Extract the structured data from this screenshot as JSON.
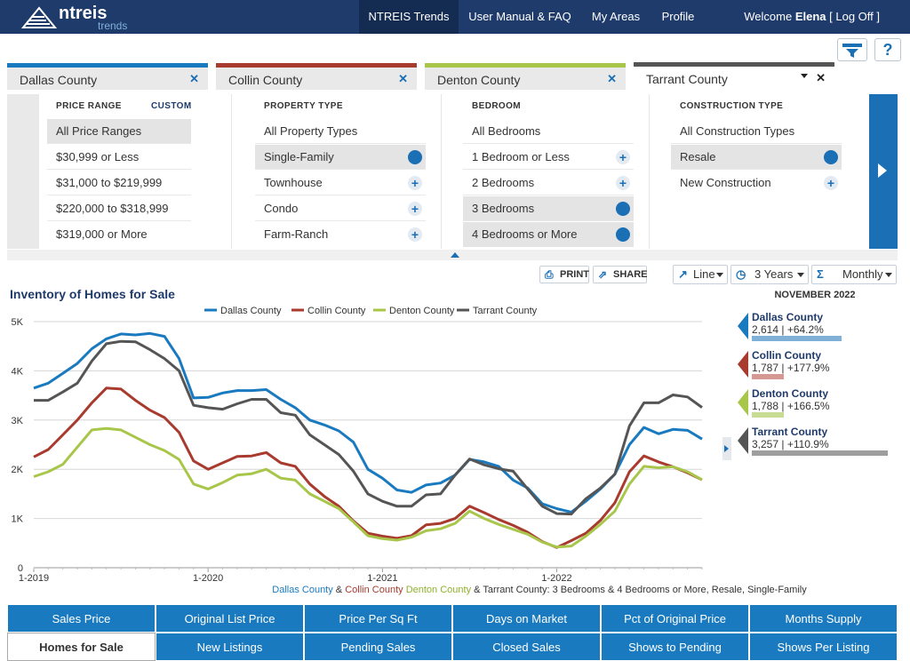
{
  "header": {
    "logo_text": "ntreis",
    "logo_sub": "trends",
    "nav": [
      "NTREIS Trends",
      "User Manual & FAQ",
      "My Areas",
      "Profile"
    ],
    "welcome_prefix": "Welcome",
    "user": "Elena",
    "logout": "[ Log Off ]"
  },
  "toolbar_icons": {
    "filter": "filter-icon",
    "help": "?"
  },
  "area_tabs": [
    {
      "label": "Dallas County",
      "color": "#1a7abf"
    },
    {
      "label": "Collin County",
      "color": "#a83a2e"
    },
    {
      "label": "Denton County",
      "color": "#a8c64a"
    },
    {
      "label": "Tarrant County",
      "color": "#555555"
    }
  ],
  "filters": {
    "price": {
      "header": "PRICE RANGE",
      "custom": "CUSTOM",
      "items": [
        "All Price Ranges",
        "$30,999 or Less",
        "$31,000 to $219,999",
        "$220,000 to $318,999",
        "$319,000 or More"
      ]
    },
    "property": {
      "header": "PROPERTY TYPE",
      "items": [
        "All Property Types",
        "Single-Family",
        "Townhouse",
        "Condo",
        "Farm-Ranch"
      ]
    },
    "bedroom": {
      "header": "BEDROOM",
      "items": [
        "All Bedrooms",
        "1 Bedroom or Less",
        "2 Bedrooms",
        "3 Bedrooms",
        "4 Bedrooms or More"
      ]
    },
    "construction": {
      "header": "CONSTRUCTION TYPE",
      "items": [
        "All Construction Types",
        "Resale",
        "New Construction"
      ]
    }
  },
  "controls": {
    "print": "PRINT",
    "share": "SHARE",
    "chart_type": "Line",
    "period": "3 Years",
    "interval": "Monthly"
  },
  "chart_data": {
    "type": "line",
    "title": "Inventory of Homes for Sale",
    "x": [
      "2019-01",
      "2019-02",
      "2019-03",
      "2019-04",
      "2019-05",
      "2019-06",
      "2019-07",
      "2019-08",
      "2019-09",
      "2019-10",
      "2019-11",
      "2019-12",
      "2020-01",
      "2020-02",
      "2020-03",
      "2020-04",
      "2020-05",
      "2020-06",
      "2020-07",
      "2020-08",
      "2020-09",
      "2020-10",
      "2020-11",
      "2020-12",
      "2021-01",
      "2021-02",
      "2021-03",
      "2021-04",
      "2021-05",
      "2021-06",
      "2021-07",
      "2021-08",
      "2021-09",
      "2021-10",
      "2021-11",
      "2021-12",
      "2022-01",
      "2022-02",
      "2022-03",
      "2022-04",
      "2022-05",
      "2022-06",
      "2022-07",
      "2022-08",
      "2022-09",
      "2022-10",
      "2022-11"
    ],
    "x_ticks": [
      "1-2019",
      "1-2020",
      "1-2021",
      "1-2022"
    ],
    "x_tick_index": [
      0,
      12,
      24,
      36
    ],
    "ylim": [
      0,
      5000
    ],
    "y_ticks": [
      "0",
      "1K",
      "2K",
      "3K",
      "4K",
      "5K"
    ],
    "y_tick_values": [
      0,
      1000,
      2000,
      3000,
      4000,
      5000
    ],
    "series": [
      {
        "name": "Dallas County",
        "color": "#1a7abf",
        "values": [
          3650,
          3750,
          3950,
          4150,
          4450,
          4650,
          4750,
          4730,
          4760,
          4700,
          4250,
          3450,
          3460,
          3550,
          3600,
          3600,
          3620,
          3420,
          3250,
          3000,
          2900,
          2780,
          2550,
          2000,
          1820,
          1580,
          1530,
          1680,
          1720,
          1880,
          2200,
          2150,
          2060,
          1780,
          1620,
          1300,
          1200,
          1130,
          1350,
          1600,
          1900,
          2500,
          2850,
          2720,
          2810,
          2790,
          2614
        ]
      },
      {
        "name": "Collin County",
        "color": "#a83a2e",
        "values": [
          2250,
          2400,
          2700,
          3000,
          3350,
          3650,
          3630,
          3400,
          3200,
          3050,
          2750,
          2170,
          2000,
          2130,
          2260,
          2270,
          2340,
          2130,
          2060,
          1700,
          1450,
          1250,
          950,
          700,
          640,
          600,
          650,
          870,
          900,
          1000,
          1250,
          1120,
          980,
          860,
          720,
          530,
          410,
          550,
          700,
          960,
          1320,
          1950,
          2270,
          2150,
          2050,
          1930,
          1787
        ]
      },
      {
        "name": "Denton County",
        "color": "#a8c64a",
        "values": [
          1850,
          1950,
          2100,
          2450,
          2800,
          2830,
          2800,
          2650,
          2500,
          2380,
          2200,
          1700,
          1600,
          1730,
          1880,
          1910,
          2000,
          1820,
          1780,
          1500,
          1350,
          1200,
          930,
          650,
          590,
          560,
          620,
          750,
          790,
          900,
          1150,
          1000,
          880,
          780,
          680,
          520,
          420,
          440,
          640,
          880,
          1150,
          1700,
          2060,
          2030,
          2050,
          1950,
          1788
        ]
      },
      {
        "name": "Tarrant County",
        "color": "#555555",
        "values": [
          3400,
          3400,
          3570,
          3750,
          4200,
          4550,
          4600,
          4590,
          4430,
          4250,
          4000,
          3300,
          3250,
          3220,
          3330,
          3420,
          3420,
          3150,
          3100,
          2700,
          2500,
          2300,
          1960,
          1500,
          1350,
          1250,
          1250,
          1480,
          1500,
          1880,
          2210,
          2090,
          2010,
          1960,
          1600,
          1250,
          1100,
          1090,
          1400,
          1620,
          1900,
          2880,
          3350,
          3350,
          3510,
          3470,
          3257
        ]
      }
    ]
  },
  "summary": {
    "month": "NOVEMBER 2022",
    "items": [
      {
        "name": "Dallas County",
        "value": "2,614 | +64.2%",
        "color": "#1a7abf",
        "bar": "#7fb1d8",
        "share": 0.5
      },
      {
        "name": "Collin County",
        "value": "1,787 | +177.9%",
        "color": "#a83a2e",
        "bar": "#d69892",
        "share": 0.17
      },
      {
        "name": "Denton County",
        "value": "1,788 | +166.5%",
        "color": "#a8c64a",
        "bar": "#c9dc94",
        "share": 0.17
      },
      {
        "name": "Tarrant County",
        "value": "3,257 | +110.9%",
        "color": "#555555",
        "bar": "#9e9e9e",
        "share": 0.98
      }
    ]
  },
  "footnote": {
    "dallas": "Dallas County",
    "amp1": " & ",
    "collin": "Collin County",
    "amp2": " ",
    "denton": "Denton County",
    "amp3": " & ",
    "tarrant": "Tarrant County",
    "rest": ": 3 Bedrooms & 4 Bedrooms or More, Resale, Single-Family"
  },
  "metric_tabs": [
    "Sales Price",
    "Original List Price",
    "Price Per Sq Ft",
    "Days on Market",
    "Pct of Original Price",
    "Months Supply",
    "Homes for Sale",
    "New Listings",
    "Pending Sales",
    "Closed Sales",
    "Shows to Pending",
    "Shows Per Listing"
  ]
}
